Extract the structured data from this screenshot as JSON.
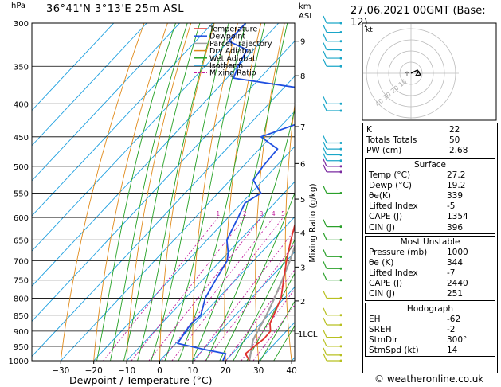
{
  "header": {
    "left_units": "hPa",
    "location": "36°41'N  3°13'E  25m  ASL",
    "km_label": "km",
    "asl_label": "ASL",
    "datetime": "27.06.2021  00GMT  (Base: 12)"
  },
  "skewt": {
    "pressure_levels": [
      300,
      350,
      400,
      450,
      500,
      550,
      600,
      650,
      700,
      750,
      800,
      850,
      900,
      950,
      1000
    ],
    "pressure_labels": [
      "300",
      "350",
      "400",
      "450",
      "500",
      "550",
      "600",
      "650",
      "700",
      "750",
      "800",
      "850",
      "900",
      "950",
      "1000"
    ],
    "temp_ticks": [
      -30,
      -20,
      -10,
      0,
      10,
      20,
      30,
      40
    ],
    "temp_tick_labels": [
      "−30",
      "−20",
      "−10",
      "0",
      "10",
      "20",
      "30",
      "40"
    ],
    "xlabel": "Dewpoint / Temperature (°C)",
    "km_ticks": [
      {
        "label": "9",
        "p": 320
      },
      {
        "label": "8",
        "p": 362
      },
      {
        "label": "7",
        "p": 434
      },
      {
        "label": "6",
        "p": 495
      },
      {
        "label": "5",
        "p": 562
      },
      {
        "label": "4",
        "p": 633
      },
      {
        "label": "3",
        "p": 716
      },
      {
        "label": "2",
        "p": 808
      },
      {
        "label": "1LCL",
        "p": 908
      }
    ],
    "mixing_ratio_label": "Mixing Ratio (g/kg)",
    "mixing_ratio_values": [
      1,
      2,
      3,
      4,
      5,
      8,
      10,
      15,
      20,
      25
    ],
    "mixing_ratio_labels": [
      "1",
      "2",
      "3",
      "4",
      "5",
      "8",
      "10",
      "15",
      "20",
      "25"
    ],
    "temperature_profile": [
      [
        1000,
        27.2
      ],
      [
        975,
        24
      ],
      [
        950,
        24.6
      ],
      [
        925,
        25.4
      ],
      [
        900,
        25.2
      ],
      [
        875,
        22.8
      ],
      [
        850,
        21.6
      ],
      [
        800,
        19
      ],
      [
        750,
        14.6
      ],
      [
        700,
        10
      ],
      [
        650,
        5.4
      ],
      [
        600,
        0.8
      ],
      [
        550,
        -3.6
      ],
      [
        500,
        -8.8
      ],
      [
        475,
        -12.4
      ],
      [
        450,
        -14.2
      ],
      [
        400,
        -20.2
      ],
      [
        350,
        -27
      ],
      [
        300,
        -35.8
      ]
    ],
    "dewpoint_profile": [
      [
        1000,
        19.2
      ],
      [
        975,
        18
      ],
      [
        960,
        10
      ],
      [
        940,
        0.5
      ],
      [
        900,
        -0.5
      ],
      [
        875,
        -1
      ],
      [
        850,
        -0.5
      ],
      [
        800,
        -4
      ],
      [
        750,
        -6
      ],
      [
        700,
        -8
      ],
      [
        680,
        -10
      ],
      [
        650,
        -14
      ],
      [
        600,
        -17
      ],
      [
        570,
        -19
      ],
      [
        550,
        -17
      ],
      [
        525,
        -23
      ],
      [
        500,
        -24
      ],
      [
        470,
        -24.5
      ],
      [
        450,
        -33
      ],
      [
        425,
        -24
      ],
      [
        400,
        -29
      ],
      [
        380,
        -32
      ],
      [
        365,
        -58
      ],
      [
        350,
        -60
      ],
      [
        330,
        -62
      ],
      [
        320,
        -70
      ],
      [
        300,
        -70
      ]
    ],
    "parcel_profile": [
      [
        1000,
        27.2
      ],
      [
        930,
        22.5
      ],
      [
        900,
        21.3
      ],
      [
        850,
        19.4
      ],
      [
        800,
        17
      ],
      [
        750,
        14.2
      ],
      [
        700,
        11
      ],
      [
        650,
        7.3
      ],
      [
        600,
        3.4
      ],
      [
        550,
        -1.3
      ],
      [
        500,
        -6.4
      ],
      [
        450,
        -12.4
      ],
      [
        400,
        -19.3
      ],
      [
        350,
        -27.5
      ],
      [
        300,
        -37.5
      ]
    ],
    "colors": {
      "temperature": "#e0332e",
      "dewpoint": "#1f4fe0",
      "parcel": "#a0a0a0",
      "dry_adiabat": "#e08a1a",
      "wet_adiabat": "#22a022",
      "isotherm": "#1ea0e0",
      "mixing_ratio": "#c21e9e"
    }
  },
  "legend": [
    {
      "label": "Temperature",
      "color": "#e0332e",
      "dash": "none"
    },
    {
      "label": "Dewpoint",
      "color": "#1f4fe0",
      "dash": "none"
    },
    {
      "label": "Parcel Trajectory",
      "color": "#a0a0a0",
      "dash": "none"
    },
    {
      "label": "Dry Adiabat",
      "color": "#e08a1a",
      "dash": "none"
    },
    {
      "label": "Wet Adiabat",
      "color": "#22a022",
      "dash": "none"
    },
    {
      "label": "Isotherm",
      "color": "#1ea0e0",
      "dash": "none"
    },
    {
      "label": "Mixing Ratio",
      "color": "#c21e9e",
      "dash": "3,2"
    }
  ],
  "hodograph": {
    "unit_label": "kt",
    "ring_labels": [
      "10",
      "20",
      "30",
      "40"
    ],
    "ring_label_text": "40 30 20 10"
  },
  "indices": {
    "basic": [
      {
        "name": "K",
        "value": "22"
      },
      {
        "name": "Totals Totals",
        "value": "50"
      },
      {
        "name": "PW (cm)",
        "value": "2.68"
      }
    ],
    "surface_title": "Surface",
    "surface": [
      {
        "name": "Temp (°C)",
        "value": "27.2"
      },
      {
        "name": "Dewp (°C)",
        "value": "19.2"
      },
      {
        "name": "θe(K)",
        "value": "339"
      },
      {
        "name": "Lifted Index",
        "value": "-5"
      },
      {
        "name": "CAPE (J)",
        "value": "1354"
      },
      {
        "name": "CIN (J)",
        "value": "396"
      }
    ],
    "unstable_title": "Most Unstable",
    "unstable": [
      {
        "name": "Pressure (mb)",
        "value": "1000"
      },
      {
        "name": "θe (K)",
        "value": "344"
      },
      {
        "name": "Lifted Index",
        "value": "-7"
      },
      {
        "name": "CAPE (J)",
        "value": "2440"
      },
      {
        "name": "CIN (J)",
        "value": "251"
      }
    ],
    "hodo_title": "Hodograph",
    "hodo": [
      {
        "name": "EH",
        "value": "-62"
      },
      {
        "name": "SREH",
        "value": "-2"
      },
      {
        "name": "StmDir",
        "value": "300°"
      },
      {
        "name": "StmSpd (kt)",
        "value": "14"
      }
    ]
  },
  "footer": {
    "credit": "© weatheronline.co.uk"
  },
  "chart_data": {
    "type": "line",
    "xlabel": "Dewpoint / Temperature (°C)",
    "ylabel": "hPa",
    "xlim": [
      -35,
      40
    ],
    "ylim": [
      1000,
      300
    ],
    "series": [
      {
        "name": "Temperature",
        "values": [
          [
            1000,
            27.2
          ],
          [
            950,
            24.6
          ],
          [
            900,
            25.2
          ],
          [
            850,
            21.6
          ],
          [
            800,
            19
          ],
          [
            750,
            14.6
          ],
          [
            700,
            10
          ],
          [
            650,
            5.4
          ],
          [
            600,
            0.8
          ],
          [
            550,
            -3.6
          ],
          [
            500,
            -8.8
          ],
          [
            450,
            -14.2
          ],
          [
            400,
            -20.2
          ],
          [
            350,
            -27
          ],
          [
            300,
            -35.8
          ]
        ]
      },
      {
        "name": "Dewpoint",
        "values": [
          [
            1000,
            19.2
          ],
          [
            950,
            4
          ],
          [
            900,
            -0.5
          ],
          [
            850,
            -0.5
          ],
          [
            800,
            -4
          ],
          [
            750,
            -6
          ],
          [
            700,
            -8
          ],
          [
            650,
            -14
          ],
          [
            600,
            -17
          ],
          [
            550,
            -17
          ],
          [
            500,
            -24
          ],
          [
            450,
            -33
          ],
          [
            400,
            -29
          ],
          [
            350,
            -60
          ],
          [
            300,
            -70
          ]
        ]
      },
      {
        "name": "Parcel Trajectory",
        "values": [
          [
            1000,
            27.2
          ],
          [
            900,
            21.3
          ],
          [
            850,
            19.4
          ],
          [
            800,
            17
          ],
          [
            700,
            11
          ],
          [
            600,
            3.4
          ],
          [
            500,
            -6.4
          ],
          [
            400,
            -19.3
          ],
          [
            300,
            -37.5
          ]
        ]
      }
    ]
  }
}
